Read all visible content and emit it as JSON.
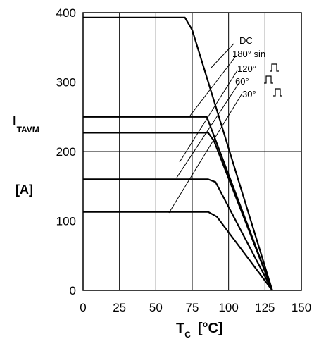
{
  "chart_data": {
    "type": "line",
    "ylabel_main": "I",
    "ylabel_sub": "TAVM",
    "yunit": "[A]",
    "xlabel_main": "T",
    "xlabel_sub": "C",
    "xunit": "[°C]",
    "xlim": [
      0,
      150
    ],
    "ylim": [
      0,
      400
    ],
    "xticks": [
      0,
      25,
      50,
      75,
      100,
      125,
      150
    ],
    "yticks": [
      0,
      100,
      200,
      300,
      400
    ],
    "grid": true,
    "series": [
      {
        "name": "DC",
        "points": [
          [
            0,
            393
          ],
          [
            70,
            393
          ],
          [
            75,
            375
          ],
          [
            130,
            0
          ]
        ]
      },
      {
        "name": "180° sin",
        "points": [
          [
            0,
            250
          ],
          [
            85,
            250
          ],
          [
            130,
            0
          ]
        ]
      },
      {
        "name": "120°",
        "points": [
          [
            0,
            227
          ],
          [
            86,
            227
          ],
          [
            90,
            215
          ],
          [
            130,
            0
          ]
        ]
      },
      {
        "name": "60°",
        "points": [
          [
            0,
            160
          ],
          [
            86,
            160
          ],
          [
            91,
            156
          ],
          [
            130,
            0
          ]
        ]
      },
      {
        "name": "30°",
        "points": [
          [
            0,
            113
          ],
          [
            86,
            113
          ],
          [
            92,
            106
          ],
          [
            130,
            0
          ]
        ]
      }
    ]
  }
}
